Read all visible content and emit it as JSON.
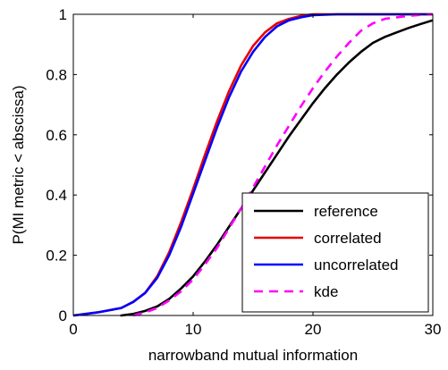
{
  "chart_data": {
    "type": "line",
    "title": "",
    "xlabel": "narrowband mutual information",
    "ylabel": "P(MI metric < abscissa)",
    "xlim": [
      0,
      30
    ],
    "ylim": [
      0,
      1
    ],
    "xticks": [
      "0",
      "10",
      "20",
      "30"
    ],
    "yticks": [
      "0",
      "0.2",
      "0.4",
      "0.6",
      "0.8",
      "1"
    ],
    "grid": false,
    "legend_position": "bottom-right",
    "series": [
      {
        "name": "reference",
        "color": "#000000",
        "dash": "solid",
        "x": [
          4,
          5,
          6,
          7,
          8,
          9,
          10,
          11,
          12,
          13,
          14,
          15,
          16,
          17,
          18,
          19,
          20,
          21,
          22,
          23,
          24,
          25,
          26,
          27,
          28,
          29,
          30
        ],
        "y": [
          0,
          0.005,
          0.015,
          0.03,
          0.055,
          0.09,
          0.13,
          0.18,
          0.235,
          0.295,
          0.355,
          0.415,
          0.475,
          0.535,
          0.595,
          0.65,
          0.705,
          0.755,
          0.8,
          0.84,
          0.875,
          0.905,
          0.925,
          0.94,
          0.955,
          0.968,
          0.98
        ]
      },
      {
        "name": "correlated",
        "color": "#e60000",
        "dash": "solid",
        "x": [
          0,
          2,
          4,
          5,
          6,
          7,
          8,
          9,
          10,
          11,
          12,
          13,
          14,
          15,
          16,
          17,
          18,
          19,
          20,
          22,
          25,
          30
        ],
        "y": [
          0,
          0.01,
          0.025,
          0.045,
          0.075,
          0.13,
          0.21,
          0.31,
          0.42,
          0.535,
          0.645,
          0.745,
          0.83,
          0.895,
          0.94,
          0.97,
          0.985,
          0.995,
          1,
          1,
          1,
          1
        ]
      },
      {
        "name": "uncorrelated",
        "color": "#0000ff",
        "dash": "solid",
        "x": [
          0,
          2,
          4,
          5,
          6,
          7,
          8,
          9,
          10,
          11,
          12,
          13,
          14,
          15,
          16,
          17,
          18,
          19,
          20,
          22,
          25,
          30
        ],
        "y": [
          0,
          0.01,
          0.025,
          0.045,
          0.075,
          0.125,
          0.2,
          0.295,
          0.405,
          0.515,
          0.625,
          0.725,
          0.81,
          0.875,
          0.925,
          0.96,
          0.98,
          0.99,
          0.997,
          1,
          1,
          1
        ]
      },
      {
        "name": "kde",
        "color": "#ff00ff",
        "dash": "dashed",
        "x": [
          5,
          6,
          7,
          8,
          9,
          10,
          11,
          12,
          13,
          14,
          15,
          16,
          17,
          18,
          19,
          20,
          21,
          22,
          23,
          24,
          25,
          26,
          27,
          28,
          29,
          30
        ],
        "y": [
          0,
          0.01,
          0.025,
          0.05,
          0.08,
          0.12,
          0.17,
          0.225,
          0.29,
          0.355,
          0.425,
          0.495,
          0.565,
          0.63,
          0.695,
          0.755,
          0.81,
          0.86,
          0.905,
          0.945,
          0.97,
          0.985,
          0.99,
          0.995,
          0.998,
          1
        ]
      }
    ]
  }
}
